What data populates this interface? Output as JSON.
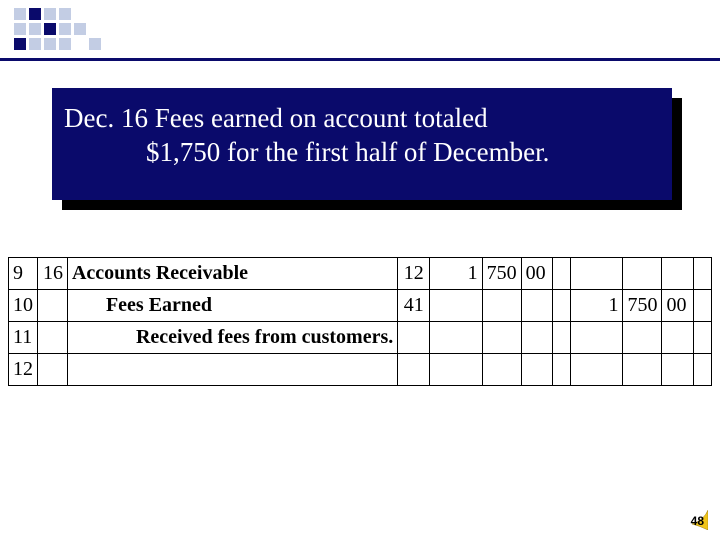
{
  "logo": {
    "rows": 3,
    "cols": 8,
    "colors": [
      [
        "#c3cde4",
        "#0a0a6b",
        "#c3cde4",
        "#c3cde4",
        "#ffffff",
        "#ffffff",
        "#ffffff",
        "#ffffff"
      ],
      [
        "#c3cde4",
        "#c3cde4",
        "#0a0a6b",
        "#c3cde4",
        "#c3cde4",
        "#ffffff",
        "#ffffff",
        "#ffffff"
      ],
      [
        "#0a0a6b",
        "#c3cde4",
        "#c3cde4",
        "#c3cde4",
        "#ffffff",
        "#c3cde4",
        "#ffffff",
        "#ffffff"
      ]
    ]
  },
  "colors": {
    "navy": "#0a0a6b",
    "light": "#c3cde4",
    "white": "#ffffff",
    "black": "#000000",
    "corner_accent": "#f0c419"
  },
  "statement": {
    "line1": "Dec. 16 Fees earned on account totaled",
    "line2": "$1,750 for the first half of December."
  },
  "journal": {
    "rows": [
      {
        "num": "9",
        "date": "16",
        "desc": "Accounts Receivable",
        "indent": 0,
        "bold": true,
        "ref": "12",
        "debit": {
          "th": "1",
          "hund": "750",
          "cents": "00"
        },
        "credit": null
      },
      {
        "num": "10",
        "date": "",
        "desc": "Fees Earned",
        "indent": 1,
        "bold": true,
        "ref": "41",
        "debit": null,
        "credit": {
          "th": "1",
          "hund": "750",
          "cents": "00"
        }
      },
      {
        "num": "11",
        "date": "",
        "desc": "Received fees from customers.",
        "indent": 2,
        "bold": true,
        "ref": "",
        "debit": null,
        "credit": null
      },
      {
        "num": "12",
        "date": "",
        "desc": "",
        "indent": 0,
        "bold": false,
        "ref": "",
        "debit": null,
        "credit": null
      }
    ]
  },
  "page_number": "48"
}
